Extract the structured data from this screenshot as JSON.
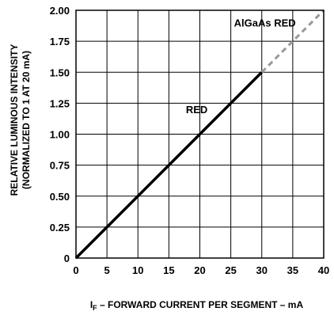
{
  "chart_data": {
    "type": "line",
    "xlabel_prefix": "I",
    "xlabel_sub": "F",
    "xlabel_rest": " – FORWARD CURRENT PER SEGMENT – mA",
    "ylabel_line1": "RELATIVE LUMINOUS INTENSITY",
    "ylabel_line2": "(NORMALIZED TO 1 AT 20 mA)",
    "xlim": [
      0,
      40
    ],
    "ylim": [
      0,
      2.0
    ],
    "x_ticks": [
      0,
      5,
      10,
      15,
      20,
      25,
      30,
      35,
      40
    ],
    "x_tick_labels": [
      "0",
      "5",
      "10",
      "15",
      "20",
      "25",
      "30",
      "35",
      "40"
    ],
    "y_ticks": [
      0,
      0.25,
      0.5,
      0.75,
      1.0,
      1.25,
      1.5,
      1.75,
      2.0
    ],
    "y_tick_labels": [
      "0",
      "0.25",
      "0.50",
      "0.75",
      "1.00",
      "1.25",
      "1.50",
      "1.75",
      "2.00"
    ],
    "grid": true,
    "series": [
      {
        "name": "RED",
        "style": "solid",
        "color": "#000000",
        "x": [
          0,
          30
        ],
        "y": [
          0,
          1.5
        ]
      },
      {
        "name": "AlGaAs RED",
        "style": "dashed",
        "color": "#999999",
        "x": [
          30,
          40
        ],
        "y": [
          1.5,
          2.0
        ]
      }
    ],
    "annotations": [
      {
        "text": "RED",
        "x": 19.5,
        "y": 1.17
      },
      {
        "text": "AlGaAs RED",
        "x": 30.5,
        "y": 1.87
      }
    ]
  }
}
